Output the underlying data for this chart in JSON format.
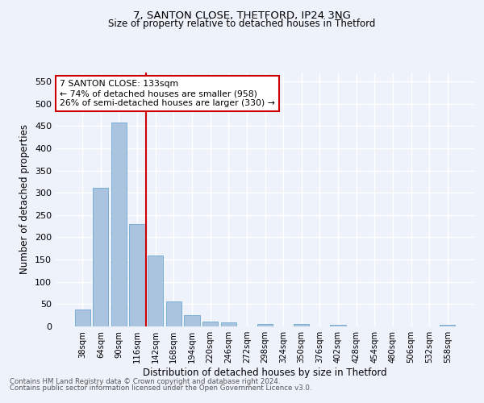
{
  "title1": "7, SANTON CLOSE, THETFORD, IP24 3NG",
  "title2": "Size of property relative to detached houses in Thetford",
  "xlabel": "Distribution of detached houses by size in Thetford",
  "ylabel": "Number of detached properties",
  "footnote1": "Contains HM Land Registry data © Crown copyright and database right 2024.",
  "footnote2": "Contains public sector information licensed under the Open Government Licence v3.0.",
  "categories": [
    "38sqm",
    "64sqm",
    "90sqm",
    "116sqm",
    "142sqm",
    "168sqm",
    "194sqm",
    "220sqm",
    "246sqm",
    "272sqm",
    "298sqm",
    "324sqm",
    "350sqm",
    "376sqm",
    "402sqm",
    "428sqm",
    "454sqm",
    "480sqm",
    "506sqm",
    "532sqm",
    "558sqm"
  ],
  "values": [
    38,
    311,
    457,
    230,
    160,
    57,
    25,
    11,
    9,
    0,
    5,
    0,
    5,
    0,
    3,
    0,
    0,
    0,
    0,
    0,
    4
  ],
  "bar_color": "#aac4e0",
  "bar_edge_color": "#7aafd4",
  "vline_color": "#cc0000",
  "annotation_text": "7 SANTON CLOSE: 133sqm\n← 74% of detached houses are smaller (958)\n26% of semi-detached houses are larger (330) →",
  "annotation_box_color": "#ffffff",
  "annotation_box_edge_color": "#cc0000",
  "ylim": [
    0,
    570
  ],
  "yticks": [
    0,
    50,
    100,
    150,
    200,
    250,
    300,
    350,
    400,
    450,
    500,
    550
  ],
  "bg_color": "#eef2fb",
  "plot_bg_color": "#eef2fb"
}
